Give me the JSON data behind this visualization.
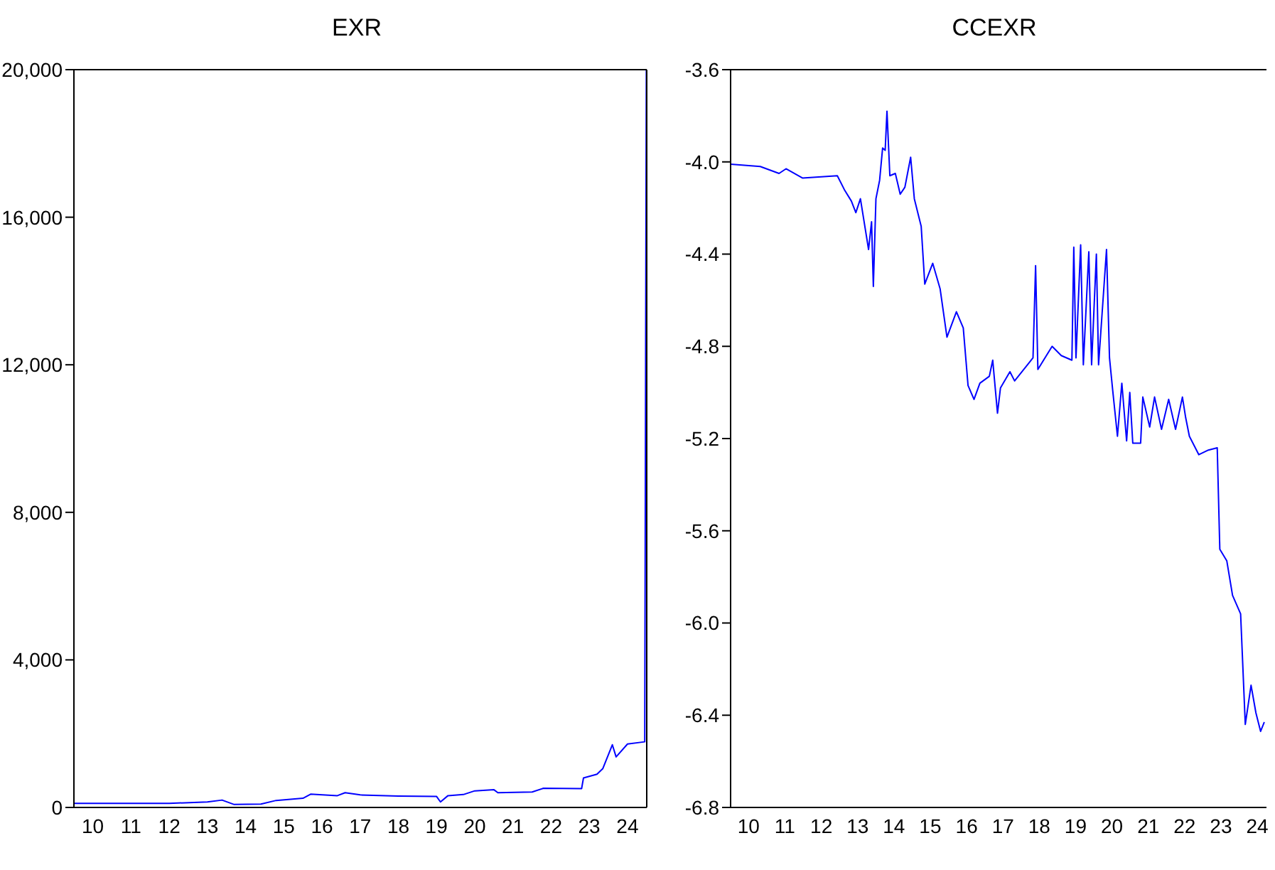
{
  "chart_data": [
    {
      "type": "line",
      "title": "EXR",
      "xlim": [
        "2010-01-01",
        "2025-01-01"
      ],
      "xticks": [
        {
          "value": "2010-07-01",
          "label": "10"
        },
        {
          "value": "2011-07-01",
          "label": "11"
        },
        {
          "value": "2012-07-01",
          "label": "12"
        },
        {
          "value": "2013-07-01",
          "label": "13"
        },
        {
          "value": "2014-07-01",
          "label": "14"
        },
        {
          "value": "2015-07-01",
          "label": "15"
        },
        {
          "value": "2016-07-01",
          "label": "16"
        },
        {
          "value": "2017-07-01",
          "label": "17"
        },
        {
          "value": "2018-07-01",
          "label": "18"
        },
        {
          "value": "2019-07-01",
          "label": "19"
        },
        {
          "value": "2020-07-01",
          "label": "20"
        },
        {
          "value": "2021-07-01",
          "label": "21"
        },
        {
          "value": "2022-07-01",
          "label": "22"
        },
        {
          "value": "2023-07-01",
          "label": "23"
        },
        {
          "value": "2024-07-01",
          "label": "24"
        }
      ],
      "ylim": [
        0,
        20000
      ],
      "yticks": [
        0,
        {
          "value": 4000,
          "label": "4,000"
        },
        {
          "value": 8000,
          "label": "8,000"
        },
        {
          "value": 12000,
          "label": "12,000"
        },
        {
          "value": 16000,
          "label": "16,000"
        },
        {
          "value": 20000,
          "label": "20,000"
        }
      ],
      "marker": "none",
      "series": [
        {
          "color": "#0000ff",
          "x": [
            "2010-01-01",
            "2012-07-01",
            "2013-07-01",
            "2013-11-18",
            "2014-03-14",
            "2014-11-25",
            "2015-04-19",
            "2016-01-01",
            "2016-03-14",
            "2016-11-25",
            "2017-02-07",
            "2017-07-01",
            "2018-07-01",
            "2019-07-01",
            "2019-08-08",
            "2019-10-19",
            "2020-03-14",
            "2020-07-01",
            "2021-01-01",
            "2021-02-07",
            "2022-01-01",
            "2022-04-19",
            "2023-04-19",
            "2023-05-07",
            "2023-09-13",
            "2023-11-07",
            "2024-02-07",
            "2024-03-14",
            "2024-07-01",
            "2024-12-13",
            "2024-12-28"
          ],
          "values": [
            110,
            110,
            150,
            200,
            80,
            90,
            190,
            250,
            360,
            320,
            400,
            340,
            310,
            300,
            150,
            320,
            350,
            450,
            480,
            400,
            420,
            520,
            510,
            800,
            900,
            1050,
            1700,
            1370,
            1720,
            1780,
            20000
          ]
        }
      ]
    },
    {
      "type": "line",
      "title": "CCEXR",
      "xlim": [
        "2010-01-01",
        "2024-10-01"
      ],
      "xticks": [
        {
          "value": "2010-07-01",
          "label": "10"
        },
        {
          "value": "2011-07-01",
          "label": "11"
        },
        {
          "value": "2012-07-01",
          "label": "12"
        },
        {
          "value": "2013-07-01",
          "label": "13"
        },
        {
          "value": "2014-07-01",
          "label": "14"
        },
        {
          "value": "2015-07-01",
          "label": "15"
        },
        {
          "value": "2016-07-01",
          "label": "16"
        },
        {
          "value": "2017-07-01",
          "label": "17"
        },
        {
          "value": "2018-07-01",
          "label": "18"
        },
        {
          "value": "2019-07-01",
          "label": "19"
        },
        {
          "value": "2020-07-01",
          "label": "20"
        },
        {
          "value": "2021-07-01",
          "label": "21"
        },
        {
          "value": "2022-07-01",
          "label": "22"
        },
        {
          "value": "2023-07-01",
          "label": "23"
        },
        {
          "value": "2024-07-01",
          "label": "24"
        }
      ],
      "ylim": [
        -6.8,
        -3.6
      ],
      "yticks": [
        {
          "value": -6.8,
          "label": "-6.8"
        },
        {
          "value": -6.4,
          "label": "-6.4"
        },
        {
          "value": -6,
          "label": "-6.0"
        },
        {
          "value": -5.6,
          "label": "-5.6"
        },
        {
          "value": -5.2,
          "label": "-5.2"
        },
        {
          "value": -4.8,
          "label": "-4.8"
        },
        {
          "value": -4.4,
          "label": "-4.4"
        },
        {
          "value": -4,
          "label": "-4.0"
        },
        {
          "value": -3.6,
          "label": "-3.6"
        }
      ],
      "marker": "none",
      "series": [
        {
          "color": "#0000ff",
          "x": [
            "2010-01-01",
            "2010-10-26",
            "2011-05-03",
            "2011-07-12",
            "2011-12-24",
            "2012-12-09",
            "2013-02-17",
            "2013-04-29",
            "2013-06-13",
            "2013-07-29",
            "2013-10-19",
            "2013-11-18",
            "2013-12-06",
            "2014-01-01",
            "2014-02-07",
            "2014-03-09",
            "2014-04-04",
            "2014-04-22",
            "2014-05-21",
            "2014-07-15",
            "2014-09-02",
            "2014-10-19",
            "2014-12-16",
            "2015-01-22",
            "2015-04-01",
            "2015-05-07",
            "2015-07-26",
            "2015-10-08",
            "2015-12-16",
            "2016-03-20",
            "2016-05-28",
            "2016-07-15",
            "2016-09-13",
            "2016-11-11",
            "2017-02-14",
            "2017-03-20",
            "2017-05-07",
            "2017-06-06",
            "2017-09-09",
            "2017-10-26",
            "2018-04-29",
            "2018-05-25",
            "2018-06-17",
            "2018-11-07",
            "2019-02-07",
            "2019-05-25",
            "2019-06-13",
            "2019-07-05",
            "2019-08-21",
            "2019-09-17",
            "2019-11-11",
            "2019-12-09",
            "2020-01-26",
            "2020-02-17",
            "2020-05-07",
            "2020-06-06",
            "2020-07-08",
            "2020-08-25",
            "2020-10-08",
            "2020-11-25",
            "2020-12-27",
            "2021-01-26",
            "2021-04-15",
            "2021-05-07",
            "2021-07-15",
            "2021-09-02",
            "2021-11-11",
            "2022-01-22",
            "2022-04-01",
            "2022-06-09",
            "2022-07-12",
            "2022-08-18",
            "2022-11-21",
            "2023-02-25",
            "2023-05-25",
            "2023-06-20",
            "2023-08-29",
            "2023-10-26",
            "2024-01-15",
            "2024-03-02",
            "2024-04-29",
            "2024-06-17",
            "2024-08-03",
            "2024-09-09"
          ],
          "values": [
            -4.01,
            -4.02,
            -4.05,
            -4.03,
            -4.07,
            -4.06,
            -4.12,
            -4.17,
            -4.22,
            -4.16,
            -4.38,
            -4.26,
            -4.54,
            -4.16,
            -4.08,
            -3.94,
            -3.95,
            -3.78,
            -4.06,
            -4.05,
            -4.14,
            -4.11,
            -3.98,
            -4.16,
            -4.28,
            -4.53,
            -4.44,
            -4.55,
            -4.76,
            -4.65,
            -4.72,
            -4.97,
            -5.03,
            -4.96,
            -4.93,
            -4.86,
            -5.09,
            -4.98,
            -4.91,
            -4.95,
            -4.85,
            -4.45,
            -4.9,
            -4.8,
            -4.84,
            -4.86,
            -4.37,
            -4.85,
            -4.36,
            -4.88,
            -4.39,
            -4.88,
            -4.4,
            -4.88,
            -4.38,
            -4.85,
            -4.99,
            -5.19,
            -4.96,
            -5.21,
            -5,
            -5.22,
            -5.22,
            -5.02,
            -5.15,
            -5.02,
            -5.16,
            -5.03,
            -5.16,
            -5.02,
            -5.11,
            -5.19,
            -5.27,
            -5.25,
            -5.24,
            -5.68,
            -5.73,
            -5.88,
            -5.96,
            -6.44,
            -6.27,
            -6.39,
            -6.47,
            -6.43
          ]
        }
      ]
    }
  ]
}
